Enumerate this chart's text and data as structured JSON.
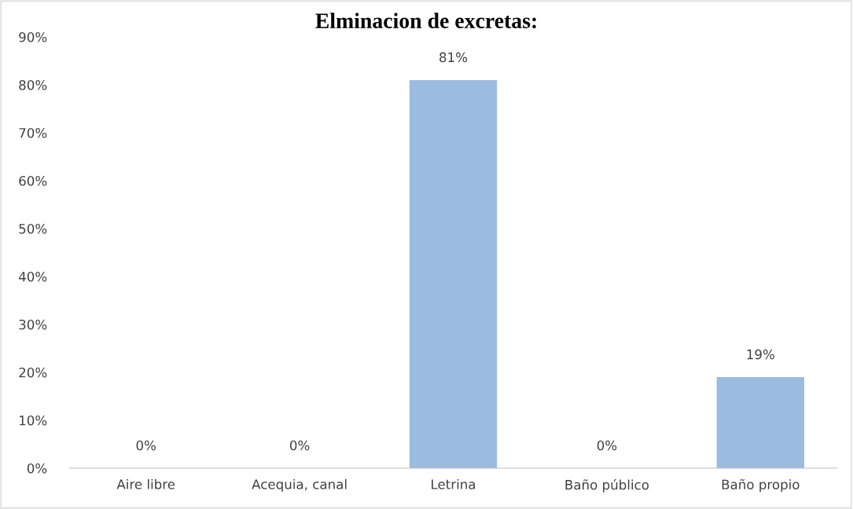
{
  "chart_data": {
    "type": "bar",
    "title": "Elminacion de excretas:",
    "categories": [
      "Aire libre",
      "Acequia, canal",
      "Letrina",
      "Baño público",
      "Baño propio"
    ],
    "values": [
      0,
      0,
      81,
      0,
      19
    ],
    "value_labels": [
      "0%",
      "0%",
      "81%",
      "0%",
      "19%"
    ],
    "color": "#9bbbe0",
    "ylim": [
      0,
      90
    ],
    "yticks": [
      {
        "value": 0,
        "label": "0%"
      },
      {
        "value": 10,
        "label": "10%"
      },
      {
        "value": 20,
        "label": "20%"
      },
      {
        "value": 30,
        "label": "30%"
      },
      {
        "value": 40,
        "label": "40%"
      },
      {
        "value": 50,
        "label": "50%"
      },
      {
        "value": 60,
        "label": "60%"
      },
      {
        "value": 70,
        "label": "70%"
      },
      {
        "value": 80,
        "label": "80%"
      },
      {
        "value": 90,
        "label": "90%"
      }
    ],
    "grid": false,
    "legend": false
  }
}
